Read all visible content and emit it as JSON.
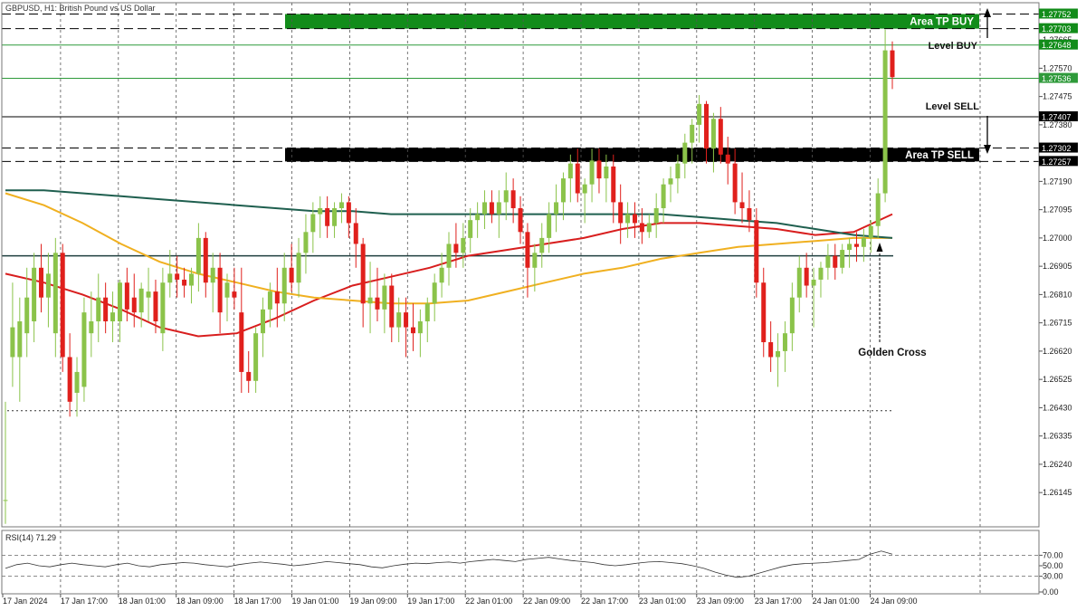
{
  "chart_title": "GBPUSD, H1:  British Pound vs US Dollar",
  "colors": {
    "bull": "#8bc34a",
    "bear": "#e0201c",
    "ma_red": "#d81e1e",
    "ma_orange": "#f0b020",
    "ma_teal": "#1f5f4f",
    "tp_buy": "#128c1a",
    "tp_sell": "#000000",
    "level_green": "#2e9a3a",
    "grid": "#555555",
    "rsi_line": "#333333"
  },
  "chart_data": {
    "type": "candlestick",
    "symbol": "GBPUSD",
    "timeframe": "H1",
    "price_axis": {
      "range": [
        1.2603,
        1.2779
      ],
      "ticks": [
        "1.27665",
        "1.27570",
        "1.27475",
        "1.27380",
        "1.27190",
        "1.27095",
        "1.27000",
        "1.26905",
        "1.26810",
        "1.26715",
        "1.26620",
        "1.26525",
        "1.26430",
        "1.26335",
        "1.26240",
        "1.26145"
      ]
    },
    "time_axis": {
      "labels": [
        "17 Jan 2024",
        "17 Jan 17:00",
        "18 Jan 01:00",
        "18 Jan 09:00",
        "18 Jan 17:00",
        "19 Jan 01:00",
        "19 Jan 09:00",
        "19 Jan 17:00",
        "22 Jan 01:00",
        "22 Jan 09:00",
        "22 Jan 17:00",
        "23 Jan 01:00",
        "23 Jan 09:00",
        "23 Jan 17:00",
        "24 Jan 01:00",
        "24 Jan 09:00"
      ]
    },
    "price_labels": [
      {
        "text": "1.27752",
        "value": 1.27752,
        "bg": "#128c1a",
        "fg": "#ffffff"
      },
      {
        "text": "1.27703",
        "value": 1.27703,
        "bg": "#128c1a",
        "fg": "#ffffff"
      },
      {
        "text": "1.27648",
        "value": 1.27648,
        "bg": "#128c1a",
        "fg": "#ffffff"
      },
      {
        "text": "1.27536",
        "value": 1.27536,
        "bg": "#2e9a3a",
        "fg": "#ffffff"
      },
      {
        "text": "1.27407",
        "value": 1.27407,
        "bg": "#000000",
        "fg": "#ffffff"
      },
      {
        "text": "1.27302",
        "value": 1.27302,
        "bg": "#000000",
        "fg": "#ffffff"
      },
      {
        "text": "1.27257",
        "value": 1.27257,
        "bg": "#000000",
        "fg": "#ffffff"
      }
    ],
    "levels": [
      {
        "name": "Level BUY",
        "value": 1.27648,
        "color": "#2e9a3a",
        "style": "solid"
      },
      {
        "name": "current-price",
        "value": 1.27536,
        "color": "#2e9a3a",
        "style": "solid"
      },
      {
        "name": "Level SELL",
        "value": 1.27407,
        "color": "#000000",
        "style": "solid"
      },
      {
        "name": "support",
        "value": 1.2694,
        "color": "#1f3f3f",
        "style": "solid"
      },
      {
        "name": "low",
        "value": 1.2642,
        "color": "#333333",
        "style": "dotted"
      },
      {
        "name": "buy-upper",
        "value": 1.27752,
        "color": "#000000",
        "style": "dashed"
      },
      {
        "name": "buy-lower",
        "value": 1.27703,
        "color": "#000000",
        "style": "dashed"
      },
      {
        "name": "sell-upper",
        "value": 1.27302,
        "color": "#000000",
        "style": "dashed"
      },
      {
        "name": "sell-lower",
        "value": 1.27257,
        "color": "#000000",
        "style": "dashed"
      }
    ],
    "zones": [
      {
        "label": "Area TP BUY",
        "from": 1.27703,
        "to": 1.27752,
        "color": "#128c1a"
      },
      {
        "label": "Area TP SELL",
        "from": 1.27257,
        "to": 1.27302,
        "color": "#000000"
      }
    ],
    "annotations": {
      "level_buy": "Level BUY",
      "level_sell": "Level SELL",
      "golden_cross": "Golden Cross"
    },
    "candles": [
      [
        1.2612,
        1.2645,
        1.2604,
        1.2612
      ],
      [
        1.266,
        1.2685,
        1.265,
        1.267
      ],
      [
        1.266,
        1.268,
        1.2645,
        1.2672
      ],
      [
        1.2668,
        1.269,
        1.266,
        1.268
      ],
      [
        1.2672,
        1.2695,
        1.2665,
        1.269
      ],
      [
        1.269,
        1.2698,
        1.2675,
        1.268
      ],
      [
        1.268,
        1.2695,
        1.267,
        1.2688
      ],
      [
        1.2668,
        1.27,
        1.266,
        1.2695
      ],
      [
        1.2695,
        1.2698,
        1.2655,
        1.266
      ],
      [
        1.266,
        1.2668,
        1.264,
        1.2645
      ],
      [
        1.2648,
        1.266,
        1.264,
        1.2655
      ],
      [
        1.265,
        1.268,
        1.2645,
        1.2675
      ],
      [
        1.2668,
        1.2682,
        1.266,
        1.2672
      ],
      [
        1.2672,
        1.2688,
        1.2665,
        1.268
      ],
      [
        1.268,
        1.2685,
        1.2668,
        1.2672
      ],
      [
        1.2672,
        1.2682,
        1.2665,
        1.2675
      ],
      [
        1.2672,
        1.2686,
        1.2665,
        1.2685
      ],
      [
        1.2685,
        1.269,
        1.2672,
        1.2676
      ],
      [
        1.268,
        1.2688,
        1.267,
        1.2675
      ],
      [
        1.2675,
        1.2685,
        1.267,
        1.2683
      ],
      [
        1.268,
        1.269,
        1.2672,
        1.2682
      ],
      [
        1.2682,
        1.2686,
        1.2668,
        1.2672
      ],
      [
        1.2668,
        1.269,
        1.2662,
        1.2685
      ],
      [
        1.2685,
        1.2696,
        1.268,
        1.2688
      ],
      [
        1.2688,
        1.2694,
        1.268,
        1.2686
      ],
      [
        1.2686,
        1.269,
        1.268,
        1.2684
      ],
      [
        1.2684,
        1.269,
        1.2678,
        1.2688
      ],
      [
        1.2688,
        1.2705,
        1.2682,
        1.27
      ],
      [
        1.27,
        1.2702,
        1.268,
        1.2685
      ],
      [
        1.2685,
        1.2695,
        1.2675,
        1.269
      ],
      [
        1.269,
        1.2695,
        1.2668,
        1.2675
      ],
      [
        1.268,
        1.2688,
        1.2672,
        1.2685
      ],
      [
        1.2682,
        1.269,
        1.2676,
        1.268
      ],
      [
        1.2675,
        1.269,
        1.2648,
        1.2655
      ],
      [
        1.2655,
        1.2662,
        1.2648,
        1.2652
      ],
      [
        1.2652,
        1.267,
        1.2648,
        1.2668
      ],
      [
        1.2668,
        1.268,
        1.266,
        1.2676
      ],
      [
        1.2676,
        1.2685,
        1.267,
        1.2682
      ],
      [
        1.2682,
        1.269,
        1.267,
        1.2678
      ],
      [
        1.2678,
        1.2695,
        1.2672,
        1.269
      ],
      [
        1.269,
        1.2698,
        1.2682,
        1.2685
      ],
      [
        1.2685,
        1.27,
        1.268,
        1.2695
      ],
      [
        1.2695,
        1.2708,
        1.2688,
        1.2702
      ],
      [
        1.2702,
        1.2712,
        1.2695,
        1.2708
      ],
      [
        1.2708,
        1.2714,
        1.27,
        1.271
      ],
      [
        1.271,
        1.2714,
        1.27,
        1.2704
      ],
      [
        1.2704,
        1.2712,
        1.27,
        1.271
      ],
      [
        1.271,
        1.2715,
        1.2705,
        1.2712
      ],
      [
        1.2712,
        1.2714,
        1.27,
        1.2705
      ],
      [
        1.2705,
        1.271,
        1.269,
        1.2698
      ],
      [
        1.2698,
        1.27,
        1.267,
        1.2678
      ],
      [
        1.2678,
        1.2692,
        1.2668,
        1.268
      ],
      [
        1.268,
        1.269,
        1.2672,
        1.2676
      ],
      [
        1.2676,
        1.2688,
        1.2668,
        1.2684
      ],
      [
        1.2684,
        1.2688,
        1.2665,
        1.267
      ],
      [
        1.267,
        1.268,
        1.2665,
        1.2675
      ],
      [
        1.2675,
        1.268,
        1.266,
        1.267
      ],
      [
        1.267,
        1.2678,
        1.2662,
        1.2668
      ],
      [
        1.2668,
        1.2676,
        1.266,
        1.2672
      ],
      [
        1.2672,
        1.268,
        1.2665,
        1.2678
      ],
      [
        1.2678,
        1.2688,
        1.2672,
        1.2685
      ],
      [
        1.2685,
        1.2695,
        1.268,
        1.269
      ],
      [
        1.269,
        1.2702,
        1.2684,
        1.2698
      ],
      [
        1.2698,
        1.2705,
        1.269,
        1.2695
      ],
      [
        1.2695,
        1.2705,
        1.269,
        1.27
      ],
      [
        1.27,
        1.271,
        1.2695,
        1.2706
      ],
      [
        1.2706,
        1.2712,
        1.27,
        1.2708
      ],
      [
        1.2708,
        1.2716,
        1.2703,
        1.2712
      ],
      [
        1.2712,
        1.2716,
        1.2705,
        1.2708
      ],
      [
        1.2708,
        1.2716,
        1.27,
        1.2712
      ],
      [
        1.2712,
        1.2722,
        1.2706,
        1.2716
      ],
      [
        1.2716,
        1.272,
        1.2705,
        1.271
      ],
      [
        1.271,
        1.2714,
        1.2698,
        1.2702
      ],
      [
        1.2702,
        1.2705,
        1.268,
        1.269
      ],
      [
        1.269,
        1.2698,
        1.2682,
        1.2695
      ],
      [
        1.2695,
        1.2705,
        1.269,
        1.27
      ],
      [
        1.27,
        1.2712,
        1.2695,
        1.2708
      ],
      [
        1.2708,
        1.2718,
        1.2702,
        1.2712
      ],
      [
        1.2712,
        1.2722,
        1.2706,
        1.272
      ],
      [
        1.272,
        1.2728,
        1.2712,
        1.2725
      ],
      [
        1.2725,
        1.273,
        1.2712,
        1.2715
      ],
      [
        1.2715,
        1.272,
        1.2705,
        1.2718
      ],
      [
        1.2718,
        1.273,
        1.2712,
        1.2726
      ],
      [
        1.2726,
        1.273,
        1.2715,
        1.272
      ],
      [
        1.272,
        1.2728,
        1.2712,
        1.2724
      ],
      [
        1.2724,
        1.2728,
        1.2705,
        1.2712
      ],
      [
        1.2712,
        1.2718,
        1.2698,
        1.2705
      ],
      [
        1.2705,
        1.2712,
        1.27,
        1.2708
      ],
      [
        1.2708,
        1.2712,
        1.27,
        1.2705
      ],
      [
        1.2705,
        1.271,
        1.2698,
        1.2702
      ],
      [
        1.2702,
        1.2708,
        1.27,
        1.2705
      ],
      [
        1.2705,
        1.2715,
        1.27,
        1.271
      ],
      [
        1.271,
        1.272,
        1.2705,
        1.2718
      ],
      [
        1.2718,
        1.2724,
        1.2712,
        1.272
      ],
      [
        1.272,
        1.2728,
        1.2715,
        1.2725
      ],
      [
        1.2725,
        1.2735,
        1.272,
        1.2732
      ],
      [
        1.2732,
        1.274,
        1.2725,
        1.2738
      ],
      [
        1.2738,
        1.2748,
        1.2732,
        1.2745
      ],
      [
        1.2745,
        1.2746,
        1.2725,
        1.273
      ],
      [
        1.273,
        1.2742,
        1.2722,
        1.274
      ],
      [
        1.274,
        1.2744,
        1.2725,
        1.2728
      ],
      [
        1.2728,
        1.2734,
        1.2718,
        1.2725
      ],
      [
        1.2725,
        1.273,
        1.2708,
        1.2712
      ],
      [
        1.2712,
        1.2722,
        1.2705,
        1.271
      ],
      [
        1.271,
        1.2716,
        1.2702,
        1.2706
      ],
      [
        1.2706,
        1.271,
        1.268,
        1.2685
      ],
      [
        1.2685,
        1.269,
        1.266,
        1.2665
      ],
      [
        1.2665,
        1.2672,
        1.2655,
        1.266
      ],
      [
        1.266,
        1.2668,
        1.265,
        1.2662
      ],
      [
        1.2662,
        1.2672,
        1.2655,
        1.2668
      ],
      [
        1.2668,
        1.2685,
        1.2662,
        1.268
      ],
      [
        1.268,
        1.2694,
        1.2675,
        1.269
      ],
      [
        1.269,
        1.2695,
        1.268,
        1.2684
      ],
      [
        1.2684,
        1.269,
        1.267,
        1.2686
      ],
      [
        1.2686,
        1.2692,
        1.268,
        1.269
      ],
      [
        1.269,
        1.2698,
        1.2686,
        1.2694
      ],
      [
        1.2694,
        1.2698,
        1.2686,
        1.269
      ],
      [
        1.269,
        1.2698,
        1.2688,
        1.2696
      ],
      [
        1.2696,
        1.27,
        1.269,
        1.2698
      ],
      [
        1.2698,
        1.2702,
        1.2692,
        1.2697
      ],
      [
        1.2697,
        1.2703,
        1.2692,
        1.27
      ],
      [
        1.27,
        1.2706,
        1.2695,
        1.2704
      ],
      [
        1.2704,
        1.272,
        1.27,
        1.2715
      ],
      [
        1.2715,
        1.277,
        1.2712,
        1.2763
      ],
      [
        1.2763,
        1.2766,
        1.275,
        1.2754
      ]
    ],
    "moving_averages": [
      {
        "name": "ma-fast",
        "color": "#d81e1e",
        "values": [
          1.2688,
          1.2685,
          1.2681,
          1.2676,
          1.267,
          1.2667,
          1.2668,
          1.2673,
          1.2679,
          1.2684,
          1.2687,
          1.269,
          1.2694,
          1.2696,
          1.2698,
          1.27,
          1.2703,
          1.2705,
          1.2705,
          1.2704,
          1.2703,
          1.2701,
          1.2702,
          1.2708
        ]
      },
      {
        "name": "ma-slow",
        "color": "#f0b020",
        "values": [
          1.2715,
          1.2711,
          1.2705,
          1.2698,
          1.2692,
          1.2688,
          1.2685,
          1.2682,
          1.268,
          1.2679,
          1.2678,
          1.2678,
          1.2679,
          1.2682,
          1.2685,
          1.2688,
          1.269,
          1.2693,
          1.2695,
          1.2697,
          1.2698,
          1.2699,
          1.27,
          1.27
        ]
      },
      {
        "name": "ma-long",
        "color": "#1f5f4f",
        "values": [
          1.2716,
          1.2716,
          1.2715,
          1.2714,
          1.2713,
          1.2712,
          1.2711,
          1.271,
          1.2709,
          1.2709,
          1.2708,
          1.2708,
          1.2708,
          1.2708,
          1.2708,
          1.2708,
          1.2708,
          1.2708,
          1.2707,
          1.2706,
          1.2705,
          1.2703,
          1.2701,
          1.27
        ]
      }
    ],
    "rsi": {
      "label": "RSI(14) 71.29",
      "period": 14,
      "value": 71.29,
      "range": [
        0,
        100
      ],
      "ticks": [
        "70.00",
        "50.00",
        "30.00",
        "0.00"
      ],
      "levels": [
        70,
        30
      ],
      "tick_values": [
        70,
        50,
        30,
        0
      ],
      "values": [
        45,
        52,
        55,
        50,
        48,
        52,
        55,
        52,
        50,
        48,
        52,
        55,
        50,
        48,
        52,
        54,
        56,
        55,
        52,
        50,
        48,
        52,
        55,
        57,
        55,
        53,
        50,
        52,
        55,
        58,
        56,
        54,
        52,
        48,
        46,
        50,
        53,
        55,
        54,
        56,
        57,
        55,
        58,
        60,
        62,
        60,
        58,
        62,
        64,
        66,
        63,
        60,
        58,
        56,
        52,
        50,
        52,
        55,
        57,
        58,
        56,
        54,
        50,
        45,
        38,
        32,
        28,
        30,
        36,
        42,
        48,
        52,
        54,
        55,
        56,
        58,
        60,
        62,
        72,
        78,
        72
      ]
    }
  }
}
